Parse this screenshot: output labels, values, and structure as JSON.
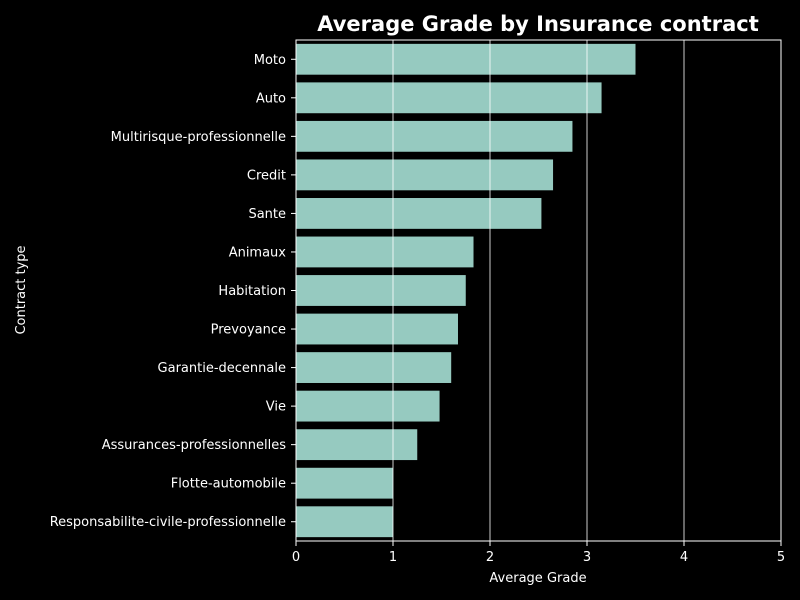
{
  "chart_data": {
    "type": "bar",
    "orientation": "horizontal",
    "title": "Average Grade by Insurance contract",
    "xlabel": "Average Grade",
    "ylabel": "Contract type",
    "categories": [
      "Moto",
      "Auto",
      "Multirisque-professionnelle",
      "Credit",
      "Sante",
      "Animaux",
      "Habitation",
      "Prevoyance",
      "Garantie-decennale",
      "Vie",
      "Assurances-professionnelles",
      "Flotte-automobile",
      "Responsabilite-civile-professionnelle"
    ],
    "values": [
      3.5,
      3.15,
      2.85,
      2.65,
      2.53,
      1.83,
      1.75,
      1.67,
      1.6,
      1.48,
      1.25,
      1.0,
      1.0
    ],
    "xlim": [
      0,
      5
    ],
    "xticks": [
      "0",
      "1",
      "2",
      "3",
      "4",
      "5"
    ],
    "grid": "vertical",
    "colors": {
      "bar": "#96cac0",
      "background": "#000000",
      "text": "#ffffff",
      "grid": "#ffffff"
    }
  }
}
